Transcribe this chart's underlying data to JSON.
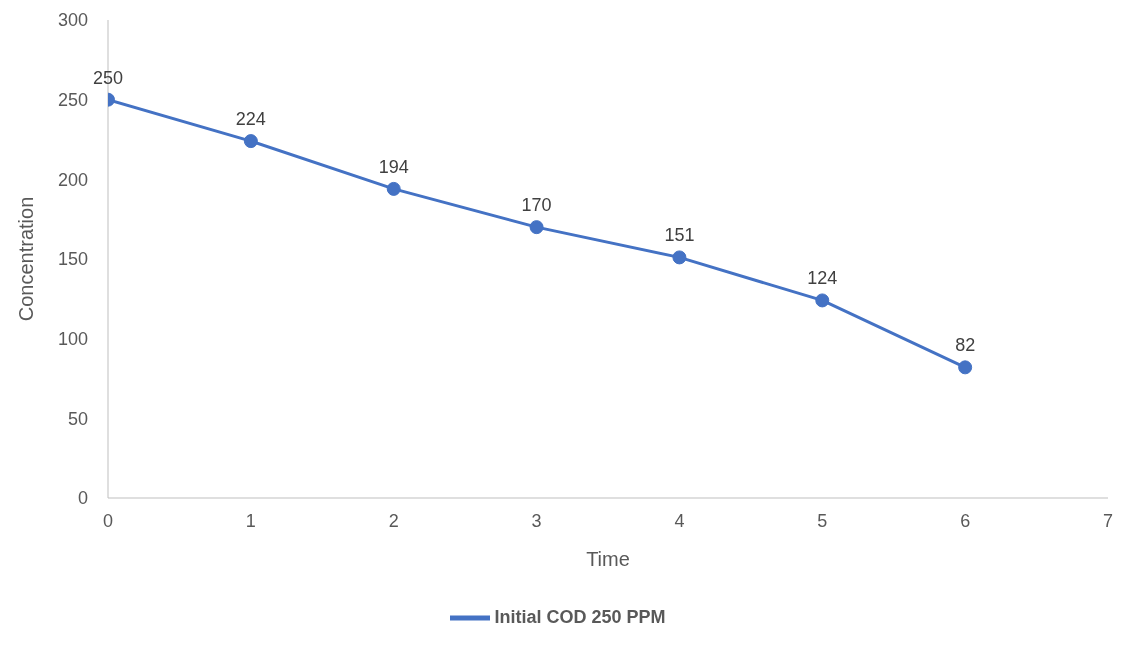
{
  "chart_data": {
    "type": "line",
    "xlabel": "Time",
    "ylabel": "Concentration",
    "x": [
      0,
      1,
      2,
      3,
      4,
      5,
      6
    ],
    "series": [
      {
        "name": "Initial COD 250 PPM",
        "color": "#4472c4",
        "values": [
          250,
          224,
          194,
          170,
          151,
          124,
          82
        ]
      }
    ],
    "xlim": [
      0,
      7
    ],
    "xticks": [
      0,
      1,
      2,
      3,
      4,
      5,
      6,
      7
    ],
    "ylim": [
      0,
      300
    ],
    "yticks": [
      0,
      50,
      100,
      150,
      200,
      250,
      300
    ],
    "grid": false,
    "legend": "bottom",
    "marker": "circle",
    "line_style": "solid",
    "data_labels": true
  }
}
